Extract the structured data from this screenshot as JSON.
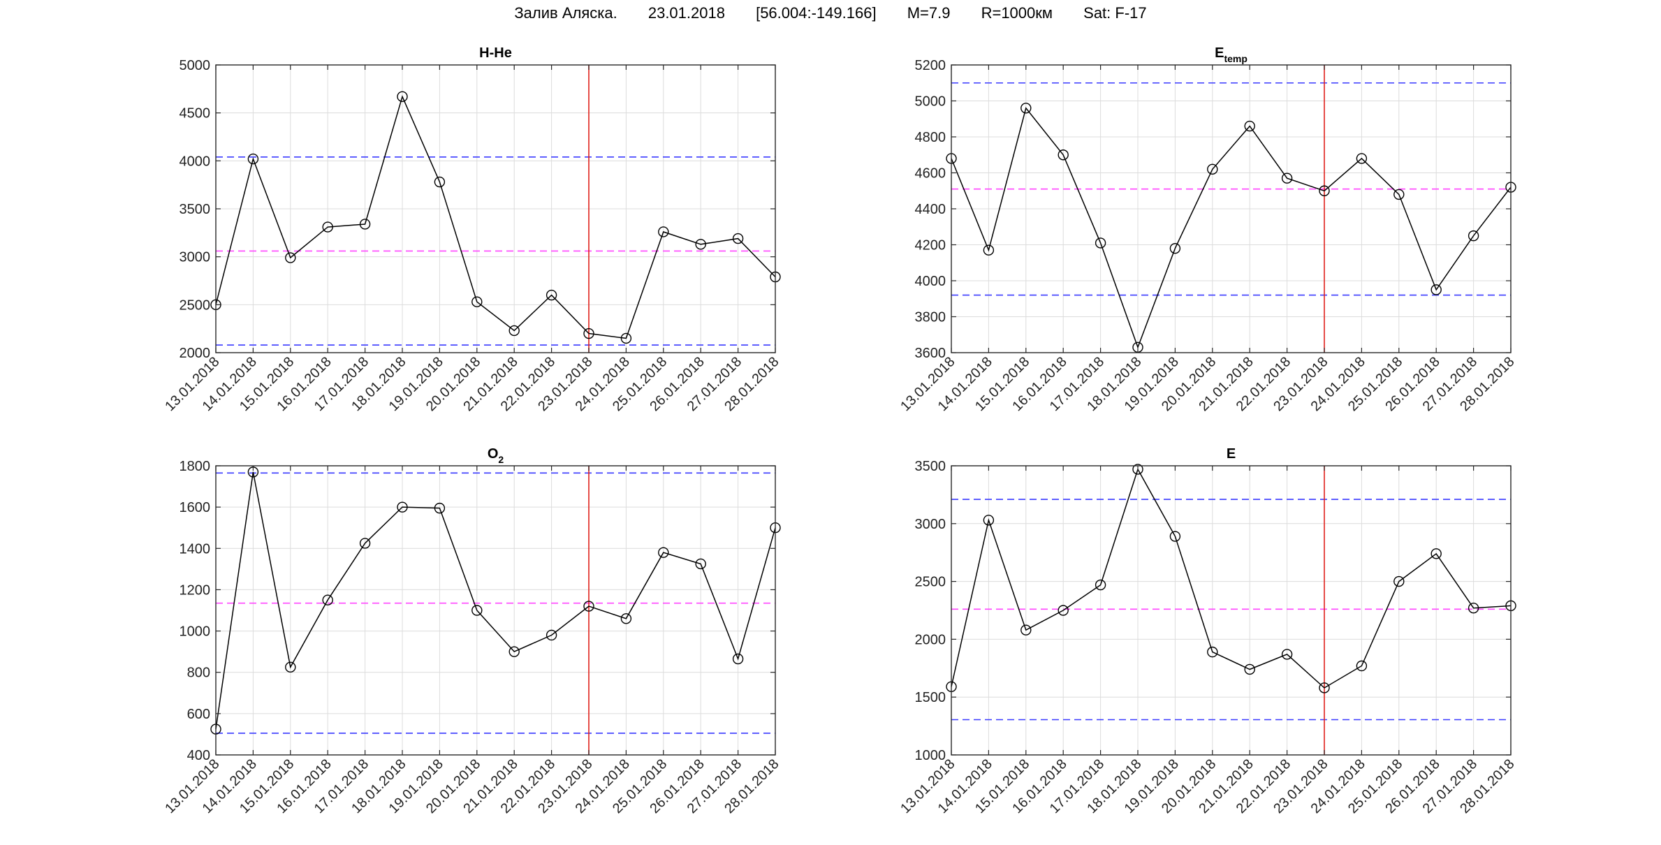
{
  "header": {
    "parts": [
      "Залив Аляска.",
      "23.01.2018",
      "[56.004:-149.166]",
      "M=7.9",
      "R=1000км",
      "Sat: F-17"
    ]
  },
  "colors": {
    "series": "#000000",
    "upper_lower": "#3a3aff",
    "mean": "#ff44ff",
    "event": "#e0201a"
  },
  "chart_data": [
    {
      "type": "line",
      "title": "H-He",
      "title_sub": "",
      "x": [
        "13.01.2018",
        "14.01.2018",
        "15.01.2018",
        "16.01.2018",
        "17.01.2018",
        "18.01.2018",
        "19.01.2018",
        "20.01.2018",
        "21.01.2018",
        "22.01.2018",
        "23.01.2018",
        "24.01.2018",
        "25.01.2018",
        "26.01.2018",
        "27.01.2018",
        "28.01.2018"
      ],
      "values": [
        2500,
        4020,
        2990,
        3310,
        3340,
        4670,
        3780,
        2530,
        2230,
        2600,
        2200,
        2150,
        3260,
        3130,
        3190,
        2790
      ],
      "ylim": [
        2000,
        5000
      ],
      "yticks": [
        2000,
        2500,
        3000,
        3500,
        4000,
        4500,
        5000
      ],
      "upper": 4040,
      "mean": 3060,
      "lower": 2080,
      "event_x": "23.01.2018",
      "grid": true
    },
    {
      "type": "line",
      "title": "E",
      "title_sub": "temp",
      "x": [
        "13.01.2018",
        "14.01.2018",
        "15.01.2018",
        "16.01.2018",
        "17.01.2018",
        "18.01.2018",
        "19.01.2018",
        "20.01.2018",
        "21.01.2018",
        "22.01.2018",
        "23.01.2018",
        "24.01.2018",
        "25.01.2018",
        "26.01.2018",
        "27.01.2018",
        "28.01.2018"
      ],
      "values": [
        4680,
        4170,
        4960,
        4700,
        4210,
        3630,
        4180,
        4620,
        4860,
        4570,
        4500,
        4680,
        4480,
        3950,
        4250,
        4520
      ],
      "ylim": [
        3600,
        5200
      ],
      "yticks": [
        3600,
        3800,
        4000,
        4200,
        4400,
        4600,
        4800,
        5000,
        5200
      ],
      "upper": 5100,
      "mean": 4510,
      "lower": 3920,
      "event_x": "23.01.2018",
      "grid": true
    },
    {
      "type": "line",
      "title": "O",
      "title_sub": "2",
      "x": [
        "13.01.2018",
        "14.01.2018",
        "15.01.2018",
        "16.01.2018",
        "17.01.2018",
        "18.01.2018",
        "19.01.2018",
        "20.01.2018",
        "21.01.2018",
        "22.01.2018",
        "23.01.2018",
        "24.01.2018",
        "25.01.2018",
        "26.01.2018",
        "27.01.2018",
        "28.01.2018"
      ],
      "values": [
        525,
        1770,
        825,
        1150,
        1425,
        1600,
        1595,
        1100,
        900,
        980,
        1120,
        1060,
        1380,
        1325,
        865,
        1500
      ],
      "ylim": [
        400,
        1800
      ],
      "yticks": [
        400,
        600,
        800,
        1000,
        1200,
        1400,
        1600,
        1800
      ],
      "upper": 1765,
      "mean": 1135,
      "lower": 505,
      "event_x": "23.01.2018",
      "grid": true
    },
    {
      "type": "line",
      "title": "E",
      "title_sub": "",
      "x": [
        "13.01.2018",
        "14.01.2018",
        "15.01.2018",
        "16.01.2018",
        "17.01.2018",
        "18.01.2018",
        "19.01.2018",
        "20.01.2018",
        "21.01.2018",
        "22.01.2018",
        "23.01.2018",
        "24.01.2018",
        "25.01.2018",
        "26.01.2018",
        "27.01.2018",
        "28.01.2018"
      ],
      "values": [
        1590,
        3030,
        2080,
        2250,
        2470,
        3470,
        2890,
        1890,
        1740,
        1870,
        1580,
        1770,
        2500,
        2740,
        2270,
        2290
      ],
      "ylim": [
        1000,
        3500
      ],
      "yticks": [
        1000,
        1500,
        2000,
        2500,
        3000,
        3500
      ],
      "upper": 3210,
      "mean": 2260,
      "lower": 1305,
      "event_x": "23.01.2018",
      "grid": true
    }
  ]
}
